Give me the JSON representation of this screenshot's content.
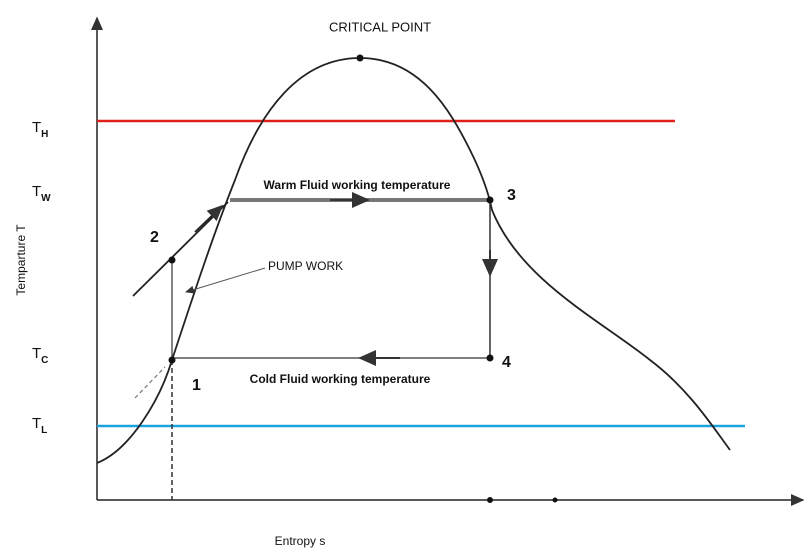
{
  "title": "CRITICAL POINT",
  "axes": {
    "y_label": "Temparture T",
    "x_label": "Entropy s"
  },
  "levels": [
    {
      "symbol": "T",
      "subscript": "H"
    },
    {
      "symbol": "T",
      "subscript": "W"
    },
    {
      "symbol": "T",
      "subscript": "C"
    },
    {
      "symbol": "T",
      "subscript": "L"
    }
  ],
  "points": [
    "1",
    "2",
    "3",
    "4"
  ],
  "annotations": {
    "warm": "Warm Fluid working temperature",
    "pump": "PUMP WORK",
    "cold": "Cold Fluid working temperature"
  }
}
